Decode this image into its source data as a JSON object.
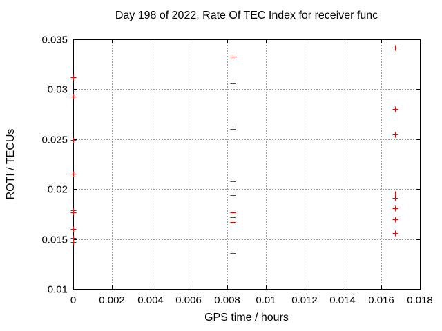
{
  "chart_data": {
    "type": "scatter",
    "title": "Day 198 of 2022, Rate Of TEC Index for receiver func",
    "xlabel": "GPS time / hours",
    "ylabel": "ROTI / TECUs",
    "xlim": [
      0,
      0.018
    ],
    "ylim": [
      0.01,
      0.035
    ],
    "xticks": [
      0,
      0.002,
      0.004,
      0.006,
      0.008,
      0.01,
      0.012,
      0.014,
      0.016,
      0.018
    ],
    "xtick_labels": [
      "0",
      "0.002",
      "0.004",
      "0.006",
      "0.008",
      "0.01",
      "0.012",
      "0.014",
      "0.016",
      "0.018"
    ],
    "yticks": [
      0.01,
      0.015,
      0.02,
      0.025,
      0.03,
      0.035
    ],
    "ytick_labels": [
      "0.01",
      "0.015",
      "0.02",
      "0.025",
      "0.03",
      "0.035"
    ],
    "grid": true,
    "legend": "none",
    "marker": "plus",
    "marker_color": "#ff0000",
    "grid_color": "#999999",
    "axis_color": "#000000",
    "background_color": "#ffffff",
    "series": [
      {
        "clusters": [
          {
            "x": 0,
            "y": [
              0.0312,
              0.0293,
              0.0249,
              0.0215,
              0.0179,
              0.0177,
              0.016,
              0.0151,
              0.0147
            ]
          },
          {
            "x": 0.0083,
            "y": [
              0.0333,
              0.0306,
              0.026,
              0.0208,
              0.0194,
              0.0177,
              0.0172,
              0.0167,
              0.0136
            ]
          },
          {
            "x": 0.0167,
            "y": [
              0.0342,
              0.028,
              0.0255,
              0.0195,
              0.0191,
              0.0181,
              0.017,
              0.0156
            ]
          }
        ]
      }
    ]
  }
}
